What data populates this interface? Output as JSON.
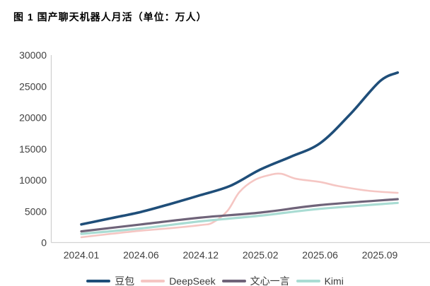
{
  "title": "图 1 国产聊天机器人月活（单位：万人）",
  "colors": {
    "axis": "#d2d2d2",
    "tick_text": "#404040"
  },
  "chart_data": {
    "type": "line",
    "title": "图 1 国产聊天机器人月活（单位：万人）",
    "unit": "万人",
    "xlabel": "",
    "ylabel": "",
    "grid": "off",
    "legend_position": "bottom",
    "ylim": [
      0,
      30000
    ],
    "y_ticks": [
      0,
      5000,
      10000,
      15000,
      20000,
      25000,
      30000
    ],
    "x_tick_labels": [
      "2024.01",
      "2024.06",
      "2024.12",
      "2025.02",
      "2025.06",
      "2025.09"
    ],
    "x_note": "series point x values are in x-tick units (0 = 2024.01 tick, 5 = 2025.09 tick)",
    "series": [
      {
        "name": "豆包",
        "color": "#1f4e79",
        "line_width": 3.6,
        "points": [
          [
            0,
            2900
          ],
          [
            0.5,
            3900
          ],
          [
            1,
            4900
          ],
          [
            1.5,
            6200
          ],
          [
            2,
            7600
          ],
          [
            2.5,
            9100
          ],
          [
            3,
            11700
          ],
          [
            3.5,
            13700
          ],
          [
            4,
            15900
          ],
          [
            4.5,
            20500
          ],
          [
            5,
            25800
          ],
          [
            5.3,
            27200
          ]
        ]
      },
      {
        "name": "DeepSeek",
        "color": "#f5c6c3",
        "line_width": 2.6,
        "points": [
          [
            0,
            850
          ],
          [
            0.5,
            1400
          ],
          [
            1,
            1900
          ],
          [
            1.5,
            2300
          ],
          [
            2,
            2800
          ],
          [
            2.2,
            3200
          ],
          [
            2.45,
            5100
          ],
          [
            2.65,
            8100
          ],
          [
            2.9,
            10000
          ],
          [
            3.15,
            10800
          ],
          [
            3.35,
            11000
          ],
          [
            3.6,
            10200
          ],
          [
            4,
            9700
          ],
          [
            4.3,
            9050
          ],
          [
            4.8,
            8300
          ],
          [
            5.3,
            7950
          ]
        ]
      },
      {
        "name": "文心一言",
        "color": "#6f6379",
        "line_width": 3.2,
        "points": [
          [
            0,
            1800
          ],
          [
            1,
            2900
          ],
          [
            2,
            4000
          ],
          [
            3,
            4800
          ],
          [
            4,
            6000
          ],
          [
            5.3,
            6950
          ]
        ]
      },
      {
        "name": "Kimi",
        "color": "#a9dcd3",
        "line_width": 3.2,
        "points": [
          [
            0,
            1400
          ],
          [
            1,
            2260
          ],
          [
            2,
            3400
          ],
          [
            3,
            4300
          ],
          [
            4,
            5400
          ],
          [
            5.3,
            6350
          ]
        ]
      }
    ]
  }
}
